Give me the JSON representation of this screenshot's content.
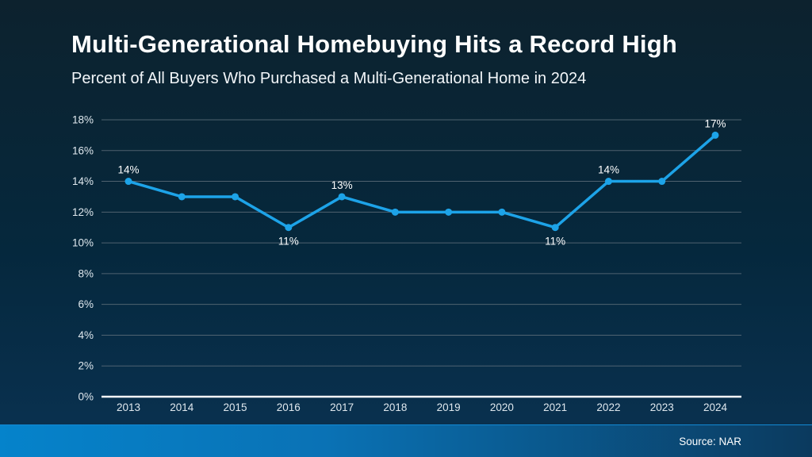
{
  "page": {
    "title": "Multi-Generational Homebuying Hits a Record High",
    "subtitle": "Percent of All Buyers Who Purchased a Multi-Generational Home in 2024",
    "source": "Source: NAR"
  },
  "colors": {
    "background_top": "#0d222e",
    "background_bottom": "#0a3252",
    "line": "#1da3e8",
    "marker": "#1da3e8",
    "gridline": "#5c6d79",
    "axis_line": "#f5f8fa",
    "tick_label": "#dfe8ee",
    "data_label": "#ffffff",
    "footer_gradient_left": "#0583cb",
    "footer_gradient_right": "#0b3a5e"
  },
  "chart_data": {
    "type": "line",
    "title": "Multi-Generational Homebuying Hits a Record High",
    "subtitle": "Percent of All Buyers Who Purchased a Multi-Generational Home in 2024",
    "categories": [
      "2013",
      "2014",
      "2015",
      "2016",
      "2017",
      "2018",
      "2019",
      "2020",
      "2021",
      "2022",
      "2023",
      "2024"
    ],
    "values": [
      14,
      13,
      13,
      11,
      13,
      12,
      12,
      12,
      11,
      14,
      14,
      17
    ],
    "xlabel": "",
    "ylabel": "",
    "ylim": [
      0,
      18
    ],
    "y_tick_step": 2,
    "y_tick_suffix": "%",
    "grid": true,
    "legend": "none",
    "data_labels": [
      {
        "category": "2013",
        "text": "14%",
        "placement": "above"
      },
      {
        "category": "2016",
        "text": "11%",
        "placement": "below"
      },
      {
        "category": "2017",
        "text": "13%",
        "placement": "above"
      },
      {
        "category": "2021",
        "text": "11%",
        "placement": "below"
      },
      {
        "category": "2022",
        "text": "14%",
        "placement": "above"
      },
      {
        "category": "2024",
        "text": "17%",
        "placement": "above"
      }
    ]
  }
}
